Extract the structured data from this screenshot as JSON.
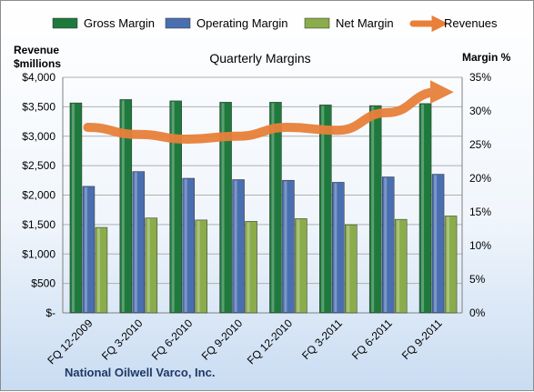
{
  "chart_data": {
    "type": "bar",
    "title": "Quarterly Margins",
    "left_axis_label": [
      "Revenue",
      "$millions"
    ],
    "right_axis_label": "Margin %",
    "company": "National Oilwell Varco, Inc.",
    "categories": [
      "FQ 12-2009",
      "FQ 3-2010",
      "FQ 6-2010",
      "FQ 9-2010",
      "FQ 12-2010",
      "FQ 3-2011",
      "FQ 6-2011",
      "FQ 9-2011"
    ],
    "left_axis": {
      "min": 0,
      "max": 4000,
      "ticks": [
        "$-",
        "$500",
        "$1,000",
        "$1,500",
        "$2,000",
        "$2,500",
        "$3,000",
        "$3,500",
        "$4,000"
      ]
    },
    "right_axis": {
      "min": 0,
      "max": 35,
      "ticks": [
        "0%",
        "5%",
        "10%",
        "15%",
        "20%",
        "25%",
        "30%",
        "35%"
      ]
    },
    "series": [
      {
        "name": "Gross Margin",
        "axis": "right",
        "color": "#1e7a3c",
        "values": [
          31.2,
          31.7,
          31.5,
          31.3,
          31.3,
          30.9,
          30.8,
          31.1
        ]
      },
      {
        "name": "Operating Margin",
        "axis": "right",
        "color": "#4a6fb0",
        "values": [
          18.8,
          21.0,
          20.0,
          19.8,
          19.7,
          19.4,
          20.2,
          20.6
        ]
      },
      {
        "name": "Net Margin",
        "axis": "right",
        "color": "#8aac4a",
        "values": [
          12.7,
          14.1,
          13.8,
          13.6,
          14.0,
          13.1,
          13.9,
          14.4
        ]
      },
      {
        "name": "Revenues",
        "axis": "left",
        "type": "line",
        "color": "#e8803a",
        "values": [
          3150,
          3030,
          2950,
          3000,
          3150,
          3100,
          3400,
          3750
        ]
      }
    ],
    "grid": true,
    "legend_position": "top"
  }
}
